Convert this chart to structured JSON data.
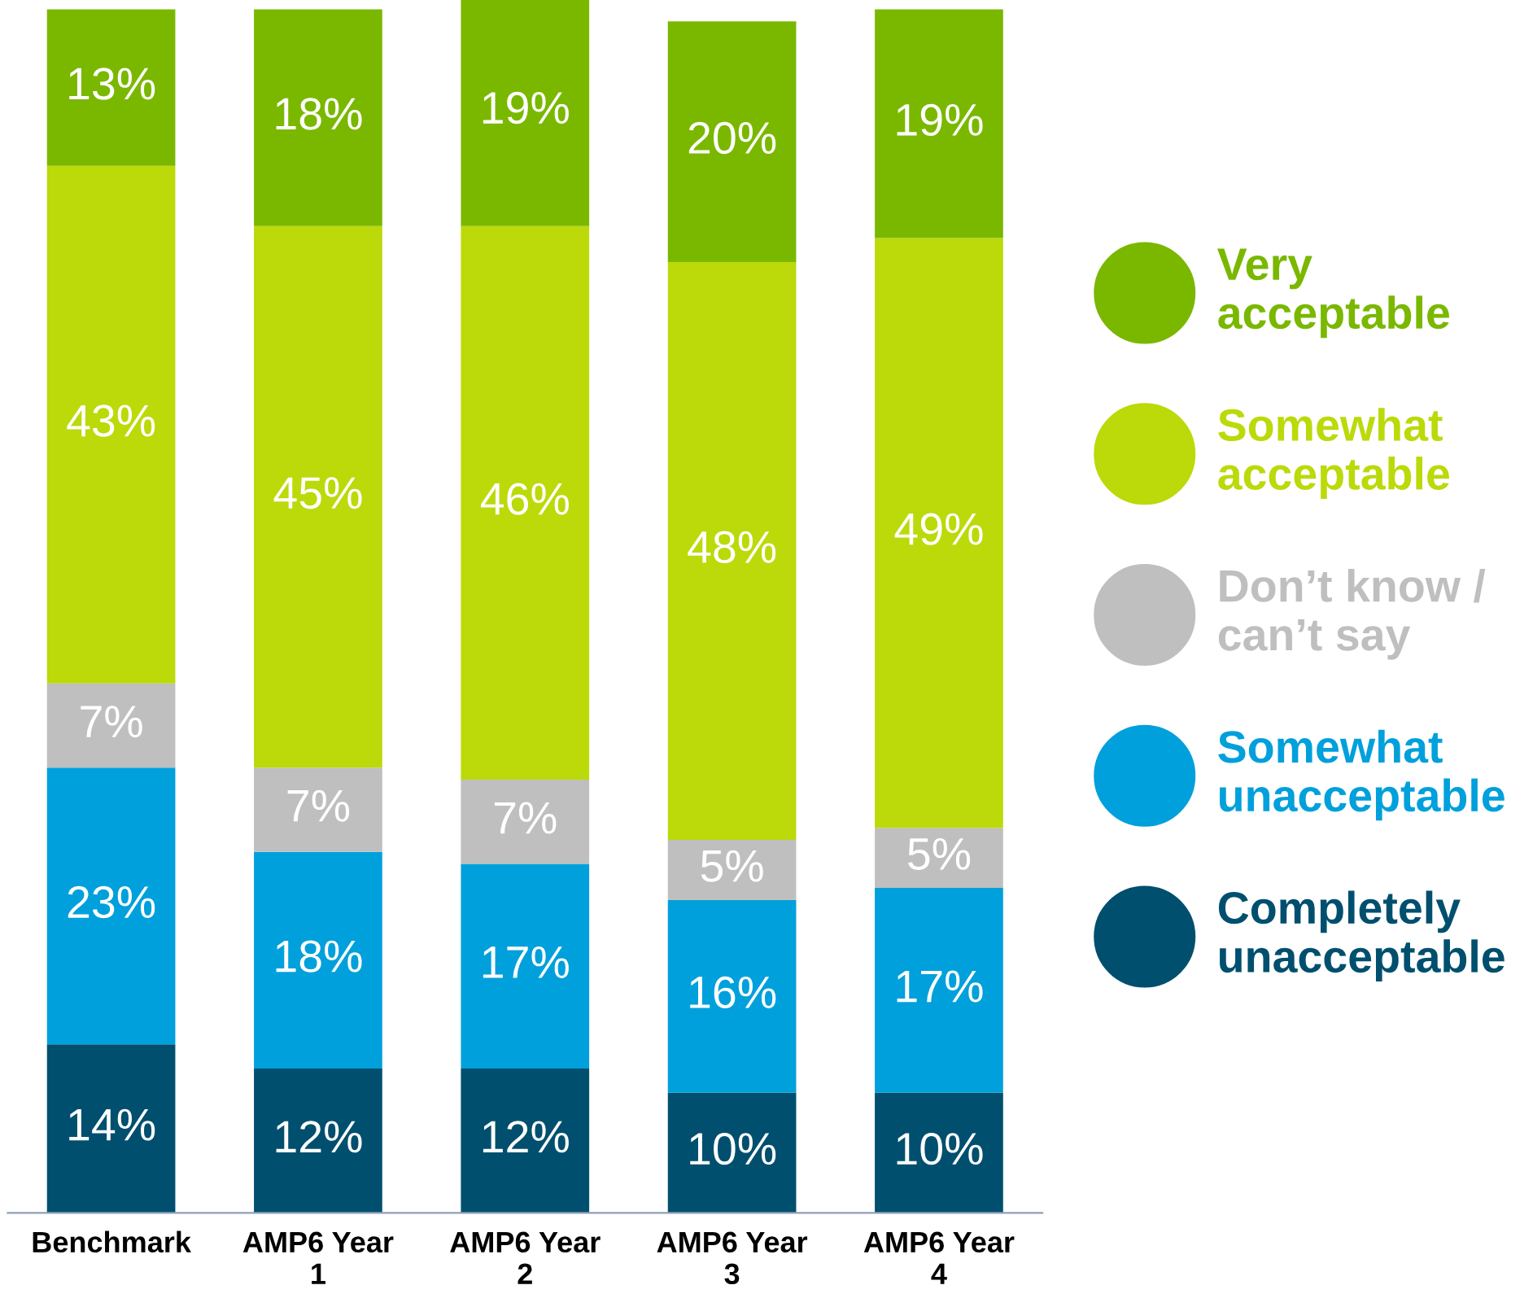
{
  "chart_data": {
    "type": "bar",
    "stacked": true,
    "legend": "right",
    "grid": false,
    "categories": [
      "Benchmark",
      "AMP6 Year\n1",
      "AMP6 Year\n2",
      "AMP6 Year\n3",
      "AMP6 Year\n4"
    ],
    "series": [
      {
        "name": "Completely unacceptable",
        "color": "#004f6e",
        "values": [
          14,
          12,
          12,
          10,
          10
        ],
        "value_labels": [
          "14%",
          "12%",
          "12%",
          "10%",
          "10%"
        ]
      },
      {
        "name": "Somewhat unacceptable",
        "color": "#00a0dc",
        "values": [
          23,
          18,
          17,
          16,
          17
        ],
        "value_labels": [
          "23%",
          "18%",
          "17%",
          "16%",
          "17%"
        ]
      },
      {
        "name": "Don’t know / can’t say",
        "color": "#bfbfbf",
        "values": [
          7,
          7,
          7,
          5,
          5
        ],
        "value_labels": [
          "7%",
          "7%",
          "7%",
          "5%",
          "5%"
        ]
      },
      {
        "name": "Somewhat acceptable",
        "color": "#bcd90a",
        "values": [
          43,
          45,
          46,
          48,
          49
        ],
        "value_labels": [
          "43%",
          "45%",
          "46%",
          "48%",
          "49%"
        ]
      },
      {
        "name": "Very acceptable",
        "color": "#7ab800",
        "values": [
          13,
          18,
          19,
          20,
          19
        ],
        "value_labels": [
          "13%",
          "18%",
          "19%",
          "20%",
          "19%"
        ]
      }
    ]
  }
}
